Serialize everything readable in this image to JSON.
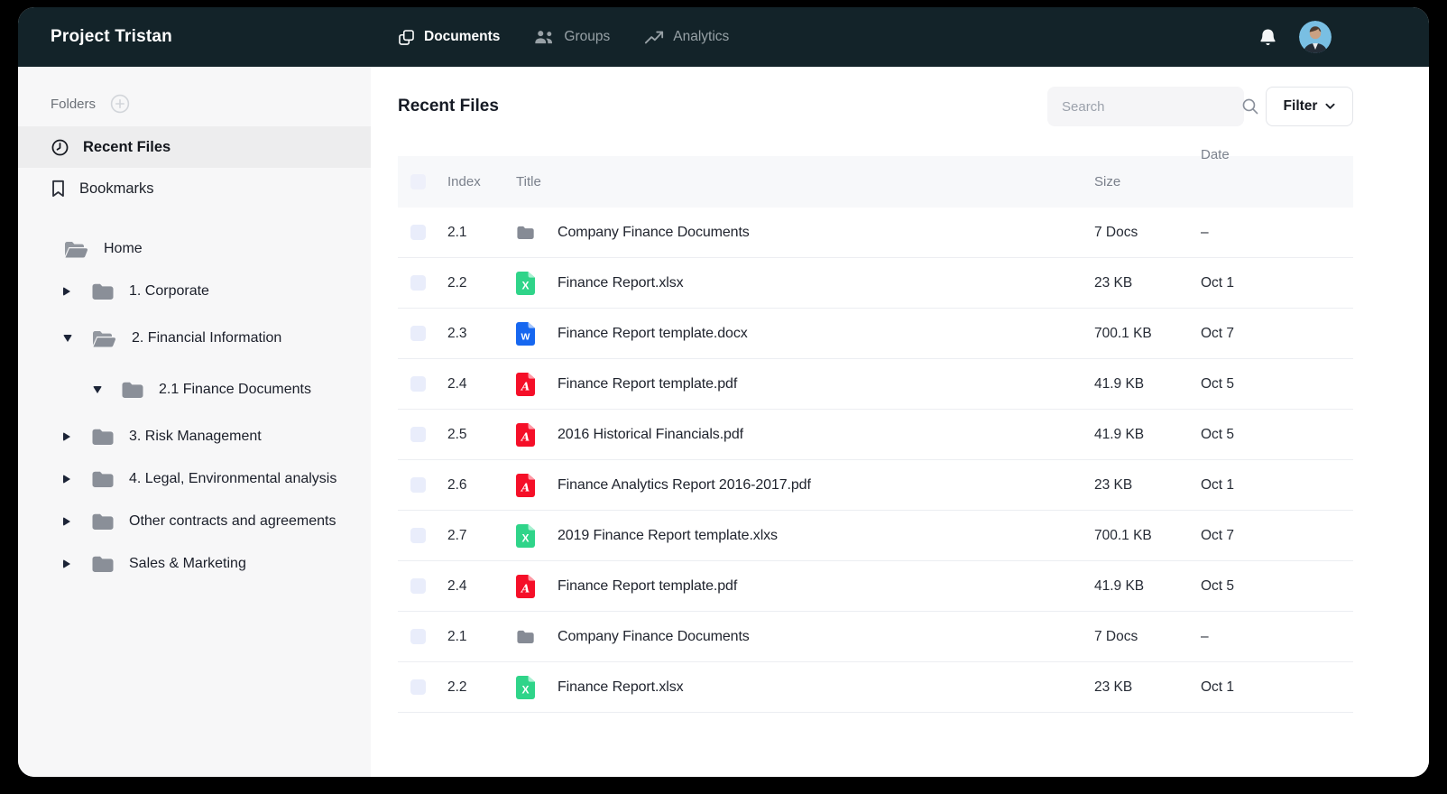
{
  "brand": "Project Tristan",
  "topnav": {
    "items": [
      {
        "label": "Documents",
        "icon": "documents-icon",
        "active": true
      },
      {
        "label": "Groups",
        "icon": "groups-icon",
        "active": false
      },
      {
        "label": "Analytics",
        "icon": "analytics-icon",
        "active": false
      }
    ]
  },
  "sidebar": {
    "folders_label": "Folders",
    "shortcuts": [
      {
        "label": "Recent Files",
        "icon": "clock-icon",
        "active": true
      },
      {
        "label": "Bookmarks",
        "icon": "bookmark-icon",
        "active": false
      }
    ],
    "tree": [
      {
        "label": "Home",
        "caret": "none",
        "folder": "open",
        "depth": 0
      },
      {
        "label": "1. Corporate",
        "caret": "right",
        "folder": "closed",
        "depth": 0
      },
      {
        "label": "2. Financial Information",
        "caret": "down",
        "folder": "open",
        "depth": 0
      },
      {
        "label": "2.1 Finance Documents",
        "caret": "down",
        "folder": "closed",
        "depth": 1
      },
      {
        "label": "3. Risk Management",
        "caret": "right",
        "folder": "closed",
        "depth": 0
      },
      {
        "label": "4. Legal, Environmental analysis",
        "caret": "right",
        "folder": "closed",
        "depth": 0
      },
      {
        "label": "Other contracts and agreements",
        "caret": "right",
        "folder": "closed",
        "depth": 0
      },
      {
        "label": "Sales & Marketing",
        "caret": "right",
        "folder": "closed",
        "depth": 0
      }
    ]
  },
  "main": {
    "title": "Recent Files",
    "search_placeholder": "Search",
    "filter_label": "Filter",
    "table": {
      "columns": {
        "index": "Index",
        "title": "Title",
        "size": "Size",
        "date": "Date"
      },
      "rows": [
        {
          "index": "2.1",
          "icon": "folder",
          "title": "Company Finance Documents",
          "size": "7 Docs",
          "date": "–"
        },
        {
          "index": "2.2",
          "icon": "xlsx",
          "title": "Finance Report.xlsx",
          "size": "23 KB",
          "date": "Oct 1"
        },
        {
          "index": "2.3",
          "icon": "docx",
          "title": "Finance Report template.docx",
          "size": "700.1 KB",
          "date": "Oct 7"
        },
        {
          "index": "2.4",
          "icon": "pdf",
          "title": "Finance Report template.pdf",
          "size": "41.9 KB",
          "date": "Oct 5"
        },
        {
          "index": "2.5",
          "icon": "pdf",
          "title": "2016 Historical Financials.pdf",
          "size": "41.9 KB",
          "date": "Oct 5"
        },
        {
          "index": "2.6",
          "icon": "pdf",
          "title": "Finance Analytics Report 2016-2017.pdf",
          "size": "23 KB",
          "date": "Oct 1"
        },
        {
          "index": "2.7",
          "icon": "xlsx",
          "title": "2019 Finance Report template.xlxs",
          "size": "700.1 KB",
          "date": "Oct 7"
        },
        {
          "index": "2.4",
          "icon": "pdf",
          "title": "Finance Report template.pdf",
          "size": "41.9 KB",
          "date": "Oct 5"
        },
        {
          "index": "2.1",
          "icon": "folder",
          "title": "Company Finance Documents",
          "size": "7 Docs",
          "date": "–"
        },
        {
          "index": "2.2",
          "icon": "xlsx",
          "title": "Finance Report.xlsx",
          "size": "23 KB",
          "date": "Oct 1"
        }
      ]
    }
  },
  "colors": {
    "topbar": "#132329",
    "sidebar_bg": "#f7f7f8",
    "active_item_bg": "#ededee",
    "table_header_bg": "#f7f8fa",
    "accent_xlsx": "#2fd489",
    "accent_docx": "#1667f0",
    "accent_pdf": "#f50f28",
    "folder_gray": "#8a8f98"
  }
}
